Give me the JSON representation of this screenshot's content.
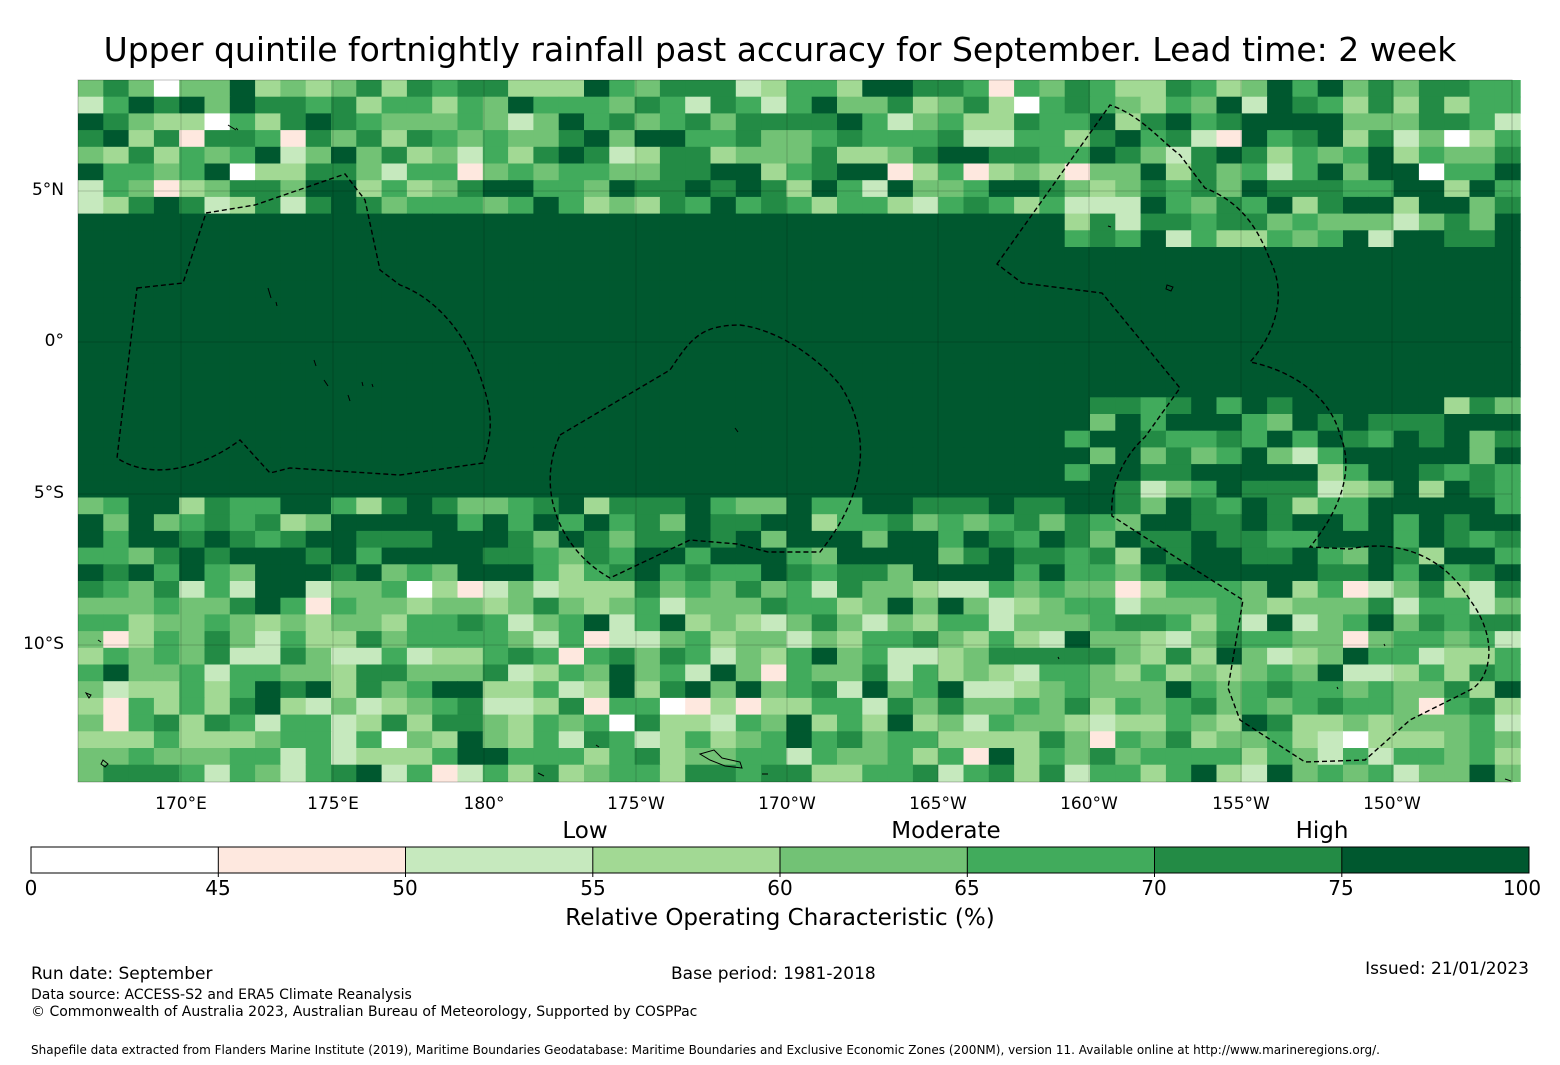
{
  "title": "Upper quintile fortnightly rainfall past accuracy for September. Lead time: 2 week",
  "map": {
    "lat_labels": [
      "5°N",
      "0°",
      "5°S",
      "10°S"
    ],
    "lon_labels": [
      "170°E",
      "175°E",
      "180°",
      "175°W",
      "170°W",
      "165°W",
      "160°W",
      "155°W",
      "150°W"
    ],
    "colors": {
      "c0": "#ffffff",
      "c1": "#fee8df",
      "c2": "#c6e9be",
      "c3": "#a2d994",
      "c4": "#72c275",
      "c5": "#41ab5c",
      "c6": "#238b45",
      "c7": "#00582f"
    }
  },
  "colorbar": {
    "category_labels": [
      "Low",
      "Moderate",
      "High"
    ],
    "ticks": [
      "0",
      "45",
      "50",
      "55",
      "60",
      "65",
      "70",
      "75",
      "100"
    ],
    "bins": [
      {
        "from": 0,
        "to": 45,
        "color": "#ffffff"
      },
      {
        "from": 45,
        "to": 50,
        "color": "#fee8df"
      },
      {
        "from": 50,
        "to": 55,
        "color": "#c6e9be"
      },
      {
        "from": 55,
        "to": 60,
        "color": "#a2d994"
      },
      {
        "from": 60,
        "to": 65,
        "color": "#72c275"
      },
      {
        "from": 65,
        "to": 70,
        "color": "#41ab5c"
      },
      {
        "from": 70,
        "to": 75,
        "color": "#238b45"
      },
      {
        "from": 75,
        "to": 100,
        "color": "#00582f"
      }
    ],
    "title": "Relative Operating Characteristic (%)"
  },
  "footer": {
    "run_date": "Run date: September",
    "base_period": "Base period: 1981-2018",
    "issued": "Issued: 21/01/2023",
    "data_source": "Data source: ACCESS-S2 and ERA5 Climate Reanalysis",
    "copyright": "© Commonwealth of Australia 2023, Australian Bureau of Meteorology, Supported by COSPPac",
    "shapefile": "Shapefile data extracted from Flanders Marine Institute (2019), Maritime Boundaries Geodatabase: Maritime Boundaries and Exclusive Economic Zones (200NM), version 11. Available online at http://www.marineregions.org/."
  }
}
